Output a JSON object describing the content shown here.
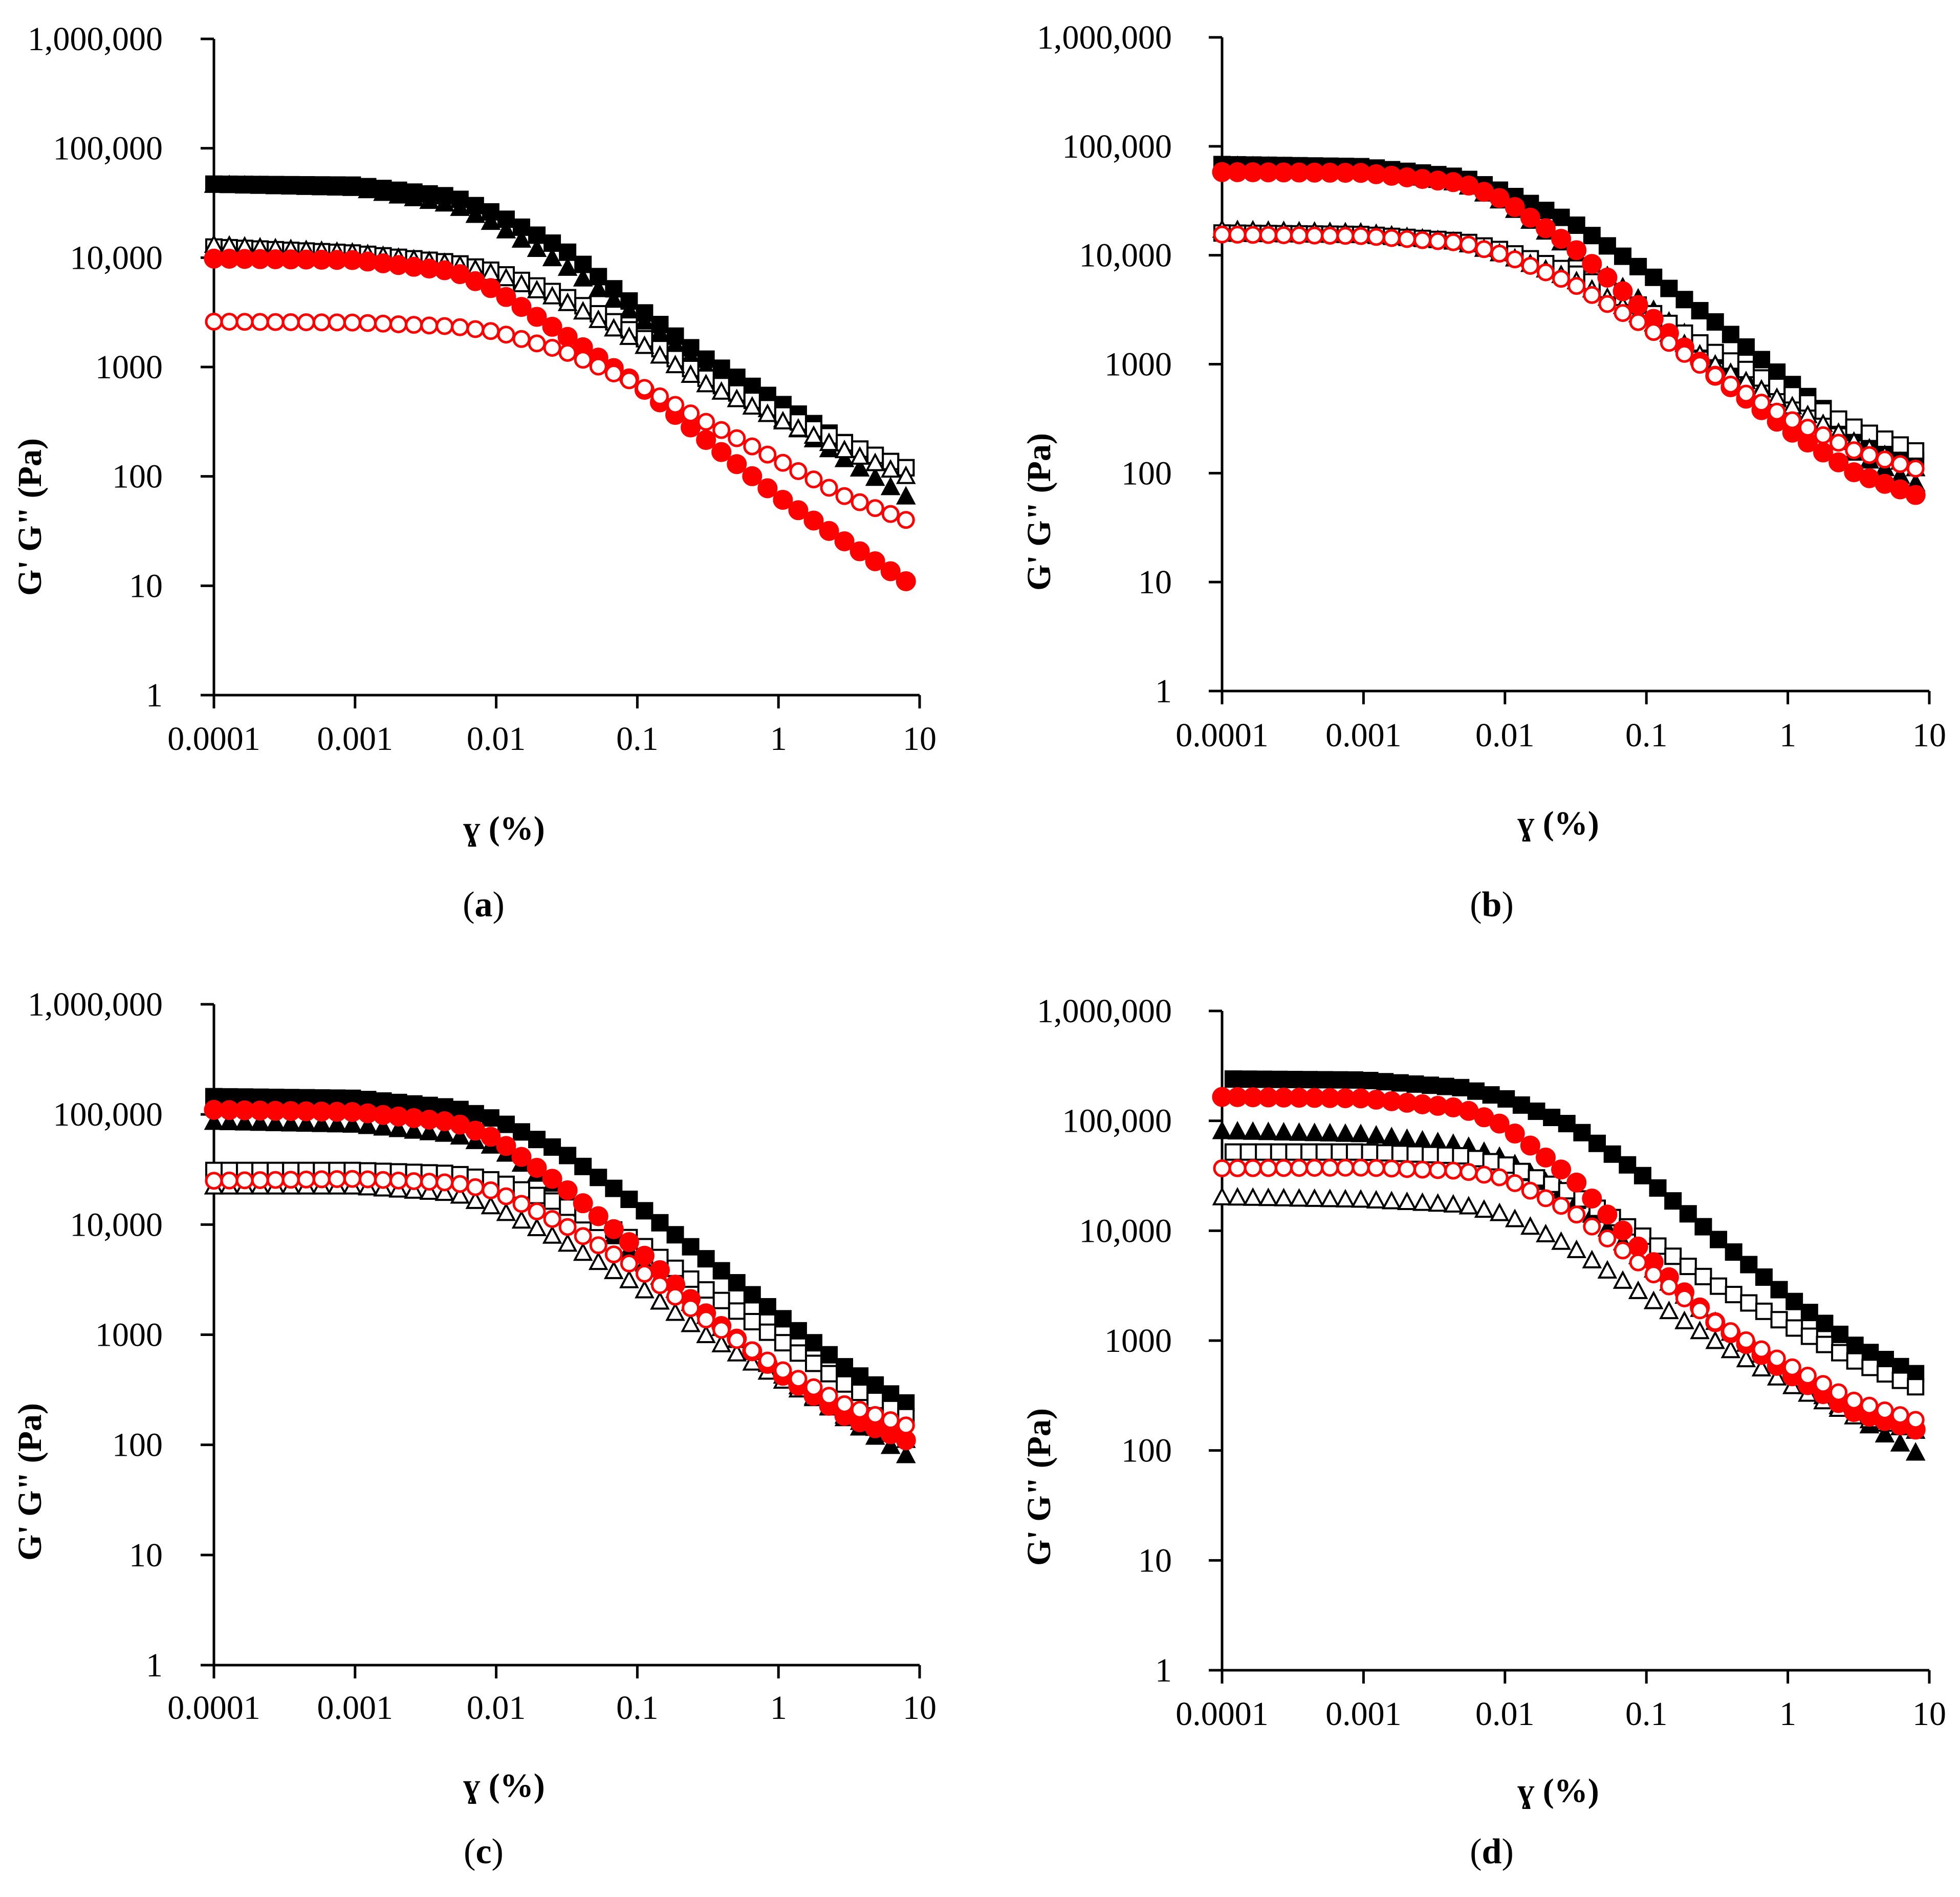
{
  "colors": {
    "black": "#000000",
    "red": "#ff0000",
    "open_fill": "#ffffff"
  },
  "chart_data": [
    {
      "type": "scatter",
      "panel_label": "a",
      "xlabel": "ɣ (%)",
      "ylabel": "G' G\" (Pa)",
      "xscale": "log",
      "yscale": "log",
      "xlim": [
        0.0001,
        10
      ],
      "ylim": [
        1,
        1000000
      ],
      "x_ticks": [
        0.0001,
        0.001,
        0.01,
        0.1,
        1,
        10
      ],
      "x_tick_labels": [
        "0.0001",
        "0.001",
        "0.01",
        "0.1",
        "1",
        "10"
      ],
      "y_ticks": [
        1,
        10,
        100,
        1000,
        10000,
        100000,
        1000000
      ],
      "y_tick_labels": [
        "1",
        "10",
        "100",
        "1000",
        "10,000",
        "100,000",
        "1,000,000"
      ],
      "series": [
        {
          "name": "filled square",
          "marker": "square",
          "fill": "filled",
          "color": "#000000",
          "x": [
            0.0001,
            0.001,
            0.005,
            0.01,
            0.03,
            0.1,
            0.3,
            1,
            3,
            8
          ],
          "y": [
            47000,
            46000,
            36000,
            25000,
            12000,
            3500,
            1200,
            480,
            200,
            120
          ]
        },
        {
          "name": "filled triangle",
          "marker": "triangle",
          "fill": "filled",
          "color": "#000000",
          "x": [
            0.0001,
            0.001,
            0.005,
            0.01,
            0.03,
            0.1,
            0.3,
            1,
            3,
            8
          ],
          "y": [
            46000,
            43000,
            30000,
            20000,
            8500,
            2900,
            1000,
            350,
            140,
            65
          ]
        },
        {
          "name": "open square",
          "marker": "square",
          "fill": "open",
          "color": "#000000",
          "x": [
            0.0001,
            0.001,
            0.005,
            0.01,
            0.03,
            0.1,
            0.3,
            1,
            3,
            8
          ],
          "y": [
            12500,
            11000,
            9000,
            7500,
            4500,
            2000,
            800,
            380,
            200,
            120
          ]
        },
        {
          "name": "open triangle",
          "marker": "triangle",
          "fill": "open",
          "color": "#000000",
          "x": [
            0.0001,
            0.001,
            0.005,
            0.01,
            0.03,
            0.1,
            0.3,
            1,
            3,
            8
          ],
          "y": [
            13000,
            11000,
            8700,
            7000,
            4000,
            1700,
            700,
            330,
            170,
            100
          ]
        },
        {
          "name": "filled circle",
          "marker": "circle",
          "fill": "filled",
          "color": "#ff0000",
          "x": [
            0.0001,
            0.001,
            0.005,
            0.01,
            0.03,
            0.1,
            0.3,
            1,
            3,
            8
          ],
          "y": [
            9800,
            9500,
            7500,
            5000,
            2000,
            700,
            220,
            65,
            25,
            11
          ]
        },
        {
          "name": "open circle",
          "marker": "circle",
          "fill": "open",
          "color": "#ff0000",
          "x": [
            0.0001,
            0.001,
            0.005,
            0.01,
            0.03,
            0.1,
            0.3,
            1,
            3,
            8
          ],
          "y": [
            2600,
            2550,
            2350,
            2100,
            1400,
            700,
            320,
            140,
            65,
            40
          ]
        }
      ]
    },
    {
      "type": "scatter",
      "panel_label": "b",
      "xlabel": "ɣ (%)",
      "ylabel": "G' G\" (Pa)",
      "xscale": "log",
      "yscale": "log",
      "xlim": [
        0.0001,
        10
      ],
      "ylim": [
        1,
        1000000
      ],
      "x_ticks": [
        0.0001,
        0.001,
        0.01,
        0.1,
        1,
        10
      ],
      "x_tick_labels": [
        "0.0001",
        "0.001",
        "0.01",
        "0.1",
        "1",
        "10"
      ],
      "y_ticks": [
        1,
        10,
        100,
        1000,
        10000,
        100000,
        1000000
      ],
      "y_tick_labels": [
        "1",
        "10",
        "100",
        "1000",
        "10,000",
        "100,000",
        "1,000,000"
      ],
      "series": [
        {
          "name": "filled square",
          "marker": "square",
          "fill": "filled",
          "color": "#000000",
          "x": [
            0.0001,
            0.001,
            0.005,
            0.01,
            0.03,
            0.1,
            0.3,
            1,
            3,
            8
          ],
          "y": [
            68000,
            65000,
            52000,
            38000,
            20000,
            7000,
            2500,
            700,
            230,
            130
          ]
        },
        {
          "name": "filled triangle",
          "marker": "triangle",
          "fill": "filled",
          "color": "#000000",
          "x": [
            0.0001,
            0.001,
            0.005,
            0.01,
            0.03,
            0.1,
            0.3,
            1,
            3,
            8
          ],
          "y": [
            66000,
            62000,
            45000,
            30000,
            11000,
            3500,
            1200,
            400,
            150,
            80
          ]
        },
        {
          "name": "open square",
          "marker": "square",
          "fill": "open",
          "color": "#000000",
          "x": [
            0.0001,
            0.001,
            0.005,
            0.01,
            0.03,
            0.1,
            0.3,
            1,
            3,
            8
          ],
          "y": [
            16000,
            15500,
            13500,
            11000,
            7000,
            3200,
            1300,
            550,
            260,
            160
          ]
        },
        {
          "name": "open triangle",
          "marker": "triangle",
          "fill": "open",
          "color": "#000000",
          "x": [
            0.0001,
            0.001,
            0.005,
            0.01,
            0.03,
            0.1,
            0.3,
            1,
            3,
            8
          ],
          "y": [
            17000,
            16000,
            13000,
            10000,
            6000,
            2600,
            1000,
            430,
            190,
            110
          ]
        },
        {
          "name": "filled circle",
          "marker": "circle",
          "fill": "filled",
          "color": "#ff0000",
          "x": [
            0.0001,
            0.001,
            0.005,
            0.01,
            0.03,
            0.1,
            0.3,
            1,
            3,
            8
          ],
          "y": [
            58000,
            57000,
            46000,
            32000,
            12000,
            3000,
            800,
            250,
            100,
            63
          ]
        },
        {
          "name": "open circle",
          "marker": "circle",
          "fill": "open",
          "color": "#ff0000",
          "x": [
            0.0001,
            0.001,
            0.005,
            0.01,
            0.03,
            0.1,
            0.3,
            1,
            3,
            8
          ],
          "y": [
            15500,
            15000,
            13000,
            10000,
            5500,
            2200,
            800,
            320,
            160,
            110
          ]
        }
      ]
    },
    {
      "type": "scatter",
      "panel_label": "c",
      "xlabel": "ɣ (%)",
      "ylabel": "G' G\" (Pa)",
      "xscale": "log",
      "yscale": "log",
      "xlim": [
        0.0001,
        10
      ],
      "ylim": [
        1,
        1000000
      ],
      "x_ticks": [
        0.0001,
        0.001,
        0.01,
        0.1,
        1,
        10
      ],
      "x_tick_labels": [
        "0.0001",
        "0.001",
        "0.01",
        "0.1",
        "1",
        "10"
      ],
      "y_ticks": [
        1,
        10,
        100,
        1000,
        10000,
        100000,
        1000000
      ],
      "y_tick_labels": [
        "1",
        "10",
        "100",
        "1000",
        "10,000",
        "100,000",
        "1,000,000"
      ],
      "series": [
        {
          "name": "filled square",
          "marker": "square",
          "fill": "filled",
          "color": "#000000",
          "x": [
            0.0001,
            0.001,
            0.005,
            0.01,
            0.03,
            0.1,
            0.3,
            1,
            3,
            8
          ],
          "y": [
            145000,
            140000,
            115000,
            90000,
            45000,
            15000,
            5000,
            1500,
            500,
            240
          ]
        },
        {
          "name": "filled triangle",
          "marker": "triangle",
          "fill": "filled",
          "color": "#000000",
          "x": [
            0.0001,
            0.001,
            0.005,
            0.01,
            0.03,
            0.1,
            0.3,
            1,
            3,
            8
          ],
          "y": [
            85000,
            80000,
            65000,
            50000,
            20000,
            5000,
            1500,
            450,
            170,
            80
          ]
        },
        {
          "name": "open square",
          "marker": "square",
          "fill": "open",
          "color": "#000000",
          "x": [
            0.0001,
            0.001,
            0.005,
            0.01,
            0.03,
            0.1,
            0.3,
            1,
            3,
            8
          ],
          "y": [
            31000,
            31000,
            29000,
            25000,
            15000,
            7000,
            2600,
            900,
            350,
            180
          ]
        },
        {
          "name": "open triangle",
          "marker": "triangle",
          "fill": "open",
          "color": "#000000",
          "x": [
            0.0001,
            0.001,
            0.005,
            0.01,
            0.03,
            0.1,
            0.3,
            1,
            3,
            8
          ],
          "y": [
            22000,
            22000,
            19000,
            14000,
            7000,
            2800,
            1000,
            400,
            180,
            110
          ]
        },
        {
          "name": "filled circle",
          "marker": "circle",
          "fill": "filled",
          "color": "#ff0000",
          "x": [
            0.0001,
            0.001,
            0.005,
            0.01,
            0.03,
            0.1,
            0.3,
            1,
            3,
            8
          ],
          "y": [
            110000,
            105000,
            85000,
            60000,
            22000,
            6000,
            1600,
            450,
            180,
            110
          ]
        },
        {
          "name": "open circle",
          "marker": "circle",
          "fill": "open",
          "color": "#ff0000",
          "x": [
            0.0001,
            0.001,
            0.005,
            0.01,
            0.03,
            0.1,
            0.3,
            1,
            3,
            8
          ],
          "y": [
            25000,
            26000,
            24000,
            20000,
            10000,
            4000,
            1400,
            500,
            230,
            150
          ]
        }
      ]
    },
    {
      "type": "scatter",
      "panel_label": "d",
      "xlabel": "ɣ (%)",
      "ylabel": "G' G\" (Pa)",
      "xscale": "log",
      "yscale": "log",
      "xlim": [
        0.0001,
        10
      ],
      "ylim": [
        1,
        1000000
      ],
      "x_ticks": [
        0.0001,
        0.001,
        0.01,
        0.1,
        1,
        10
      ],
      "x_tick_labels": [
        "0.0001",
        "0.001",
        "0.01",
        "0.1",
        "1",
        "10"
      ],
      "y_ticks": [
        1,
        10,
        100,
        1000,
        10000,
        100000,
        1000000
      ],
      "y_tick_labels": [
        "1",
        "10",
        "100",
        "1000",
        "10,000",
        "100,000",
        "1,000,000"
      ],
      "series": [
        {
          "name": "filled square",
          "marker": "square",
          "fill": "filled",
          "color": "#000000",
          "x": [
            0.00012,
            0.001,
            0.005,
            0.01,
            0.03,
            0.1,
            0.3,
            1,
            3,
            8
          ],
          "y": [
            240000,
            235000,
            200000,
            160000,
            90000,
            30000,
            9000,
            2500,
            900,
            500
          ]
        },
        {
          "name": "filled triangle",
          "marker": "triangle",
          "fill": "filled",
          "color": "#000000",
          "x": [
            0.0001,
            0.001,
            0.005,
            0.01,
            0.03,
            0.1,
            0.3,
            1,
            3,
            8
          ],
          "y": [
            80000,
            75000,
            60000,
            45000,
            20000,
            5000,
            1500,
            500,
            200,
            95
          ]
        },
        {
          "name": "open square",
          "marker": "square",
          "fill": "open",
          "color": "#000000",
          "x": [
            0.00012,
            0.001,
            0.005,
            0.01,
            0.03,
            0.1,
            0.3,
            1,
            3,
            8
          ],
          "y": [
            52000,
            52000,
            48000,
            40000,
            22000,
            8500,
            3300,
            1400,
            650,
            380
          ]
        },
        {
          "name": "open triangle",
          "marker": "triangle",
          "fill": "open",
          "color": "#000000",
          "x": [
            0.0001,
            0.001,
            0.005,
            0.01,
            0.03,
            0.1,
            0.3,
            1,
            3,
            8
          ],
          "y": [
            20000,
            19000,
            17000,
            14000,
            7000,
            2500,
            1000,
            400,
            200,
            150
          ]
        },
        {
          "name": "filled circle",
          "marker": "circle",
          "fill": "filled",
          "color": "#ff0000",
          "x": [
            0.0001,
            0.001,
            0.005,
            0.01,
            0.03,
            0.1,
            0.3,
            1,
            3,
            8
          ],
          "y": [
            165000,
            160000,
            130000,
            90000,
            30000,
            6000,
            1500,
            500,
            220,
            155
          ]
        },
        {
          "name": "open circle",
          "marker": "circle",
          "fill": "open",
          "color": "#ff0000",
          "x": [
            0.0001,
            0.001,
            0.005,
            0.01,
            0.03,
            0.1,
            0.3,
            1,
            3,
            8
          ],
          "y": [
            37000,
            37500,
            35000,
            30000,
            15000,
            4500,
            1500,
            600,
            280,
            190
          ]
        }
      ]
    }
  ]
}
